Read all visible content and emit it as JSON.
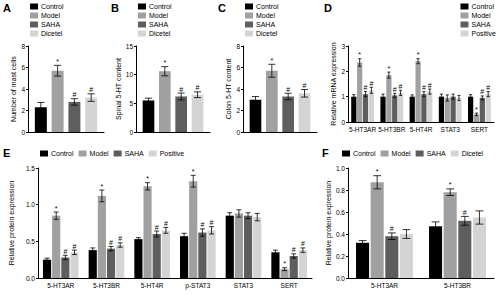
{
  "chart_data": [
    {
      "panel": "A",
      "type": "bar",
      "ylabel": "Number of mast cells",
      "categories": [
        null
      ],
      "series": [
        {
          "name": "Control",
          "color": "#000000",
          "values": [
            2.3
          ],
          "errors": [
            0.45
          ],
          "marks": [
            null
          ]
        },
        {
          "name": "Model",
          "color": "#a0a0a0",
          "values": [
            5.7
          ],
          "errors": [
            0.5
          ],
          "marks": [
            "*"
          ]
        },
        {
          "name": "SAHA",
          "color": "#5e5e5e",
          "values": [
            2.8
          ],
          "errors": [
            0.3
          ],
          "marks": [
            "#"
          ]
        },
        {
          "name": "Dicetel",
          "color": "#d4d4d4",
          "values": [
            3.2
          ],
          "errors": [
            0.35
          ],
          "marks": [
            "#"
          ]
        }
      ],
      "ylim": [
        0,
        8
      ],
      "yticks": [
        0,
        2,
        4,
        6,
        8
      ],
      "grid": false,
      "legend": "top"
    },
    {
      "panel": "B",
      "type": "bar",
      "ylabel": "Spinal 5-HT content",
      "categories": [
        null
      ],
      "series": [
        {
          "name": "Control",
          "color": "#000000",
          "values": [
            5.5
          ],
          "errors": [
            0.4
          ],
          "marks": [
            null
          ]
        },
        {
          "name": "Model",
          "color": "#a0a0a0",
          "values": [
            10.6
          ],
          "errors": [
            0.8
          ],
          "marks": [
            "*"
          ]
        },
        {
          "name": "SAHA",
          "color": "#5e5e5e",
          "values": [
            6.2
          ],
          "errors": [
            0.6
          ],
          "marks": [
            "#"
          ]
        },
        {
          "name": "Dicetel",
          "color": "#d4d4d4",
          "values": [
            6.5
          ],
          "errors": [
            0.5
          ],
          "marks": [
            "#"
          ]
        }
      ],
      "ylim": [
        0,
        15
      ],
      "yticks": [
        0,
        5,
        10,
        15
      ],
      "grid": false,
      "legend": "top"
    },
    {
      "panel": "C",
      "type": "bar",
      "ylabel": "Colon 5-HT content",
      "categories": [
        null
      ],
      "series": [
        {
          "name": "Control",
          "color": "#000000",
          "values": [
            3.0
          ],
          "errors": [
            0.3
          ],
          "marks": [
            null
          ]
        },
        {
          "name": "Model",
          "color": "#a0a0a0",
          "values": [
            5.7
          ],
          "errors": [
            0.6
          ],
          "marks": [
            "*"
          ]
        },
        {
          "name": "SAHA",
          "color": "#5e5e5e",
          "values": [
            3.3
          ],
          "errors": [
            0.3
          ],
          "marks": [
            "#"
          ]
        },
        {
          "name": "Dicetel",
          "color": "#d4d4d4",
          "values": [
            3.6
          ],
          "errors": [
            0.35
          ],
          "marks": [
            "#"
          ]
        }
      ],
      "ylim": [
        0,
        8
      ],
      "yticks": [
        0,
        2,
        4,
        6,
        8
      ],
      "grid": false,
      "legend": "top"
    },
    {
      "panel": "D",
      "type": "bar",
      "ylabel": "Relative mRNA expression",
      "categories": [
        "5-HT3AR",
        "5-HT3BR",
        "5-HT4R",
        "STAT3",
        "SERT"
      ],
      "series": [
        {
          "name": "Control",
          "color": "#000000",
          "values": [
            1.0,
            1.0,
            1.0,
            1.0,
            1.0
          ],
          "errors": [
            0.08,
            0.1,
            0.07,
            0.1,
            0.08
          ],
          "marks": [
            null,
            null,
            null,
            null,
            null
          ]
        },
        {
          "name": "Model",
          "color": "#a0a0a0",
          "values": [
            2.35,
            1.85,
            2.4,
            0.95,
            0.3
          ],
          "errors": [
            0.15,
            0.12,
            0.1,
            0.12,
            0.05
          ],
          "marks": [
            "*",
            "*",
            "*",
            null,
            "*"
          ]
        },
        {
          "name": "SAHA",
          "color": "#5e5e5e",
          "values": [
            1.1,
            1.05,
            1.1,
            1.0,
            0.95
          ],
          "errors": [
            0.1,
            0.08,
            0.1,
            0.1,
            0.08
          ],
          "marks": [
            "#",
            "#",
            "#",
            null,
            "#"
          ]
        },
        {
          "name": "Positive",
          "color": "#d4d4d4",
          "values": [
            1.25,
            1.15,
            1.2,
            0.95,
            1.1
          ],
          "errors": [
            0.12,
            0.1,
            0.1,
            0.1,
            0.1
          ],
          "marks": [
            "#",
            "#",
            "#",
            null,
            "#"
          ]
        }
      ],
      "ylim": [
        0,
        3
      ],
      "yticks": [
        0,
        1,
        2,
        3
      ],
      "grid": false,
      "legend": "top"
    },
    {
      "panel": "E",
      "type": "bar",
      "ylabel": "Relative protein expression",
      "categories": [
        "5-HT3AR",
        "5-HT3BR",
        "5-HT4R",
        "p-STAT3",
        "STAT3",
        "SERT"
      ],
      "series": [
        {
          "name": "Control",
          "color": "#000000",
          "values": [
            0.25,
            0.38,
            0.53,
            0.57,
            0.85,
            0.35
          ],
          "errors": [
            0.02,
            0.03,
            0.02,
            0.04,
            0.04,
            0.03
          ],
          "marks": [
            null,
            null,
            null,
            null,
            null,
            null
          ]
        },
        {
          "name": "Model",
          "color": "#a0a0a0",
          "values": [
            0.85,
            1.12,
            1.25,
            1.32,
            0.88,
            0.12
          ],
          "errors": [
            0.05,
            0.08,
            0.05,
            0.08,
            0.05,
            0.02
          ],
          "marks": [
            "*",
            "*",
            "*",
            "*",
            null,
            "*"
          ]
        },
        {
          "name": "SAHA",
          "color": "#5e5e5e",
          "values": [
            0.28,
            0.4,
            0.6,
            0.62,
            0.85,
            0.3
          ],
          "errors": [
            0.03,
            0.03,
            0.04,
            0.05,
            0.04,
            0.03
          ],
          "marks": [
            "#",
            "#",
            "#",
            "#",
            null,
            "#"
          ]
        },
        {
          "name": "Positive",
          "color": "#d4d4d4",
          "values": [
            0.35,
            0.45,
            0.65,
            0.65,
            0.83,
            0.38
          ],
          "errors": [
            0.03,
            0.03,
            0.04,
            0.05,
            0.05,
            0.03
          ],
          "marks": [
            "#",
            "#",
            "#",
            "#",
            null,
            "#"
          ]
        }
      ],
      "ylim": [
        0,
        1.5
      ],
      "yticks": [
        {
          "value": 0,
          "label": "0.0"
        },
        {
          "value": 0.5,
          "label": "0.5"
        },
        {
          "value": 1,
          "label": "1.0"
        },
        {
          "value": 1.5,
          "label": "1.5"
        }
      ],
      "grid": false,
      "legend": "top"
    },
    {
      "panel": "F",
      "type": "bar",
      "ylabel": "Relative protein expression",
      "categories": [
        "5-HT3AR",
        "5-HT3BR"
      ],
      "series": [
        {
          "name": "Control",
          "color": "#000000",
          "values": [
            0.32,
            0.47
          ],
          "errors": [
            0.02,
            0.04
          ],
          "marks": [
            null,
            null
          ]
        },
        {
          "name": "Model",
          "color": "#a0a0a0",
          "values": [
            0.87,
            0.78
          ],
          "errors": [
            0.06,
            0.03
          ],
          "marks": [
            "*",
            "*"
          ]
        },
        {
          "name": "SAHA",
          "color": "#5e5e5e",
          "values": [
            0.38,
            0.52
          ],
          "errors": [
            0.03,
            0.04
          ],
          "marks": [
            "#",
            "#"
          ]
        },
        {
          "name": "Dicetel",
          "color": "#d4d4d4",
          "values": [
            0.4,
            0.55
          ],
          "errors": [
            0.04,
            0.06
          ],
          "marks": [
            null,
            null
          ]
        }
      ],
      "ylim": [
        0,
        1
      ],
      "yticks": [
        {
          "value": 0,
          "label": "0.0"
        },
        {
          "value": 0.2,
          "label": "0.2"
        },
        {
          "value": 0.4,
          "label": "0.4"
        },
        {
          "value": 0.6,
          "label": "0.6"
        },
        {
          "value": 0.8,
          "label": "0.8"
        },
        {
          "value": 1,
          "label": "1.0"
        }
      ],
      "grid": false,
      "legend": "top"
    }
  ]
}
